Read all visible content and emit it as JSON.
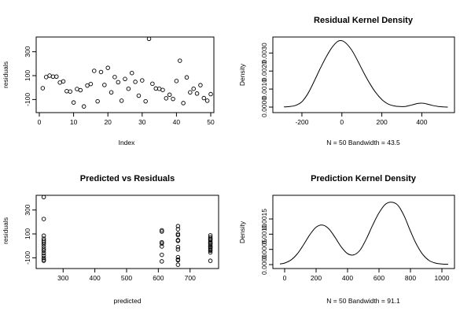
{
  "chart_data": [
    {
      "type": "scatter",
      "title": "",
      "xlabel": "Index",
      "ylabel": "residuals",
      "xlim": [
        0,
        50
      ],
      "ylim": [
        -170,
        410
      ],
      "x_ticks": [
        0,
        10,
        20,
        30,
        40,
        50
      ],
      "y_ticks": [
        -100,
        100,
        300
      ],
      "points": [
        [
          1,
          -5
        ],
        [
          2,
          88
        ],
        [
          3,
          100
        ],
        [
          4,
          92
        ],
        [
          5,
          92
        ],
        [
          6,
          42
        ],
        [
          7,
          52
        ],
        [
          8,
          -30
        ],
        [
          9,
          -33
        ],
        [
          10,
          -125
        ],
        [
          11,
          -12
        ],
        [
          12,
          -22
        ],
        [
          13,
          -158
        ],
        [
          14,
          17
        ],
        [
          15,
          30
        ],
        [
          16,
          140
        ],
        [
          17,
          -115
        ],
        [
          18,
          130
        ],
        [
          19,
          22
        ],
        [
          20,
          165
        ],
        [
          21,
          -40
        ],
        [
          22,
          88
        ],
        [
          23,
          45
        ],
        [
          24,
          -110
        ],
        [
          25,
          72
        ],
        [
          26,
          -10
        ],
        [
          27,
          122
        ],
        [
          28,
          48
        ],
        [
          29,
          -68
        ],
        [
          30,
          60
        ],
        [
          31,
          -115
        ],
        [
          32,
          408
        ],
        [
          33,
          32
        ],
        [
          34,
          -8
        ],
        [
          35,
          -10
        ],
        [
          36,
          -20
        ],
        [
          37,
          -90
        ],
        [
          38,
          -60
        ],
        [
          39,
          -95
        ],
        [
          40,
          55
        ],
        [
          41,
          225
        ],
        [
          42,
          -130
        ],
        [
          43,
          85
        ],
        [
          44,
          -40
        ],
        [
          45,
          -10
        ],
        [
          46,
          -50
        ],
        [
          47,
          20
        ],
        [
          48,
          -88
        ],
        [
          49,
          -110
        ],
        [
          50,
          -55
        ]
      ]
    },
    {
      "type": "line",
      "title": "Residual Kernel Density",
      "xlabel": "N = 50   Bandwidth = 43.5",
      "ylabel": "Density",
      "xlim": [
        -310,
        540
      ],
      "ylim": [
        0,
        0.0038
      ],
      "x_ticks": [
        -200,
        0,
        200,
        400
      ],
      "y_ticks": [
        0.0,
        0.001,
        0.002,
        0.003
      ],
      "y_tick_labels": [
        "0.0000",
        "0.0010",
        "0.0020",
        "0.0030"
      ],
      "x": [
        -290,
        -260,
        -230,
        -200,
        -170,
        -140,
        -110,
        -80,
        -50,
        -20,
        0,
        20,
        50,
        80,
        110,
        140,
        170,
        200,
        230,
        260,
        290,
        320,
        350,
        380,
        400,
        420,
        450,
        480,
        510,
        530
      ],
      "y": [
        1e-05,
        3e-05,
        0.0001,
        0.0003,
        0.00075,
        0.0014,
        0.0021,
        0.00275,
        0.0033,
        0.00365,
        0.00368,
        0.00355,
        0.00315,
        0.00255,
        0.0019,
        0.0013,
        0.0008,
        0.00042,
        0.00018,
        7e-05,
        3e-05,
        4e-05,
        0.00012,
        0.0002,
        0.00022,
        0.00019,
        0.0001,
        4e-05,
        1e-05,
        0.0
      ]
    },
    {
      "type": "scatter",
      "title": "Predicted vs Residuals",
      "xlabel": "predicted",
      "ylabel": "residuals",
      "xlim": [
        225,
        780
      ],
      "ylim": [
        -170,
        410
      ],
      "x_ticks": [
        300,
        400,
        500,
        600,
        700
      ],
      "y_ticks": [
        -100,
        100,
        300
      ],
      "points": [
        [
          239,
          408
        ],
        [
          239,
          225
        ],
        [
          239,
          85
        ],
        [
          239,
          60
        ],
        [
          239,
          45
        ],
        [
          239,
          30
        ],
        [
          239,
          15
        ],
        [
          239,
          -5
        ],
        [
          239,
          -25
        ],
        [
          239,
          -40
        ],
        [
          239,
          -60
        ],
        [
          239,
          -80
        ],
        [
          239,
          -100
        ],
        [
          239,
          -115
        ],
        [
          239,
          -125
        ],
        [
          611,
          130
        ],
        [
          611,
          120
        ],
        [
          611,
          30
        ],
        [
          611,
          20
        ],
        [
          611,
          -5
        ],
        [
          611,
          -75
        ],
        [
          611,
          -130
        ],
        [
          662,
          165
        ],
        [
          662,
          140
        ],
        [
          662,
          100
        ],
        [
          662,
          90
        ],
        [
          662,
          48
        ],
        [
          662,
          42
        ],
        [
          662,
          -10
        ],
        [
          662,
          -30
        ],
        [
          662,
          -95
        ],
        [
          662,
          -115
        ],
        [
          662,
          -120
        ],
        [
          662,
          -158
        ],
        [
          764,
          88
        ],
        [
          764,
          72
        ],
        [
          764,
          60
        ],
        [
          764,
          55
        ],
        [
          764,
          45
        ],
        [
          764,
          32
        ],
        [
          764,
          22
        ],
        [
          764,
          17
        ],
        [
          764,
          5
        ],
        [
          764,
          -5
        ],
        [
          764,
          -10
        ],
        [
          764,
          -20
        ],
        [
          764,
          -33
        ],
        [
          764,
          -40
        ],
        [
          764,
          -55
        ],
        [
          764,
          -125
        ]
      ]
    },
    {
      "type": "line",
      "title": "Prediction Kernel Density",
      "xlabel": "N = 50   Bandwidth = 91.1",
      "ylabel": "Density",
      "xlim": [
        -30,
        1050
      ],
      "ylim": [
        0,
        0.0022
      ],
      "x_ticks": [
        0,
        200,
        400,
        600,
        800,
        1000
      ],
      "y_ticks": [
        0.0,
        0.0005,
        0.001,
        0.0015
      ],
      "y_tick_labels": [
        "0.0000",
        "0.0005",
        "0.0010",
        "0.0015"
      ],
      "x": [
        -30,
        0,
        40,
        80,
        120,
        160,
        200,
        240,
        280,
        320,
        360,
        400,
        440,
        480,
        520,
        560,
        600,
        640,
        680,
        720,
        760,
        800,
        840,
        880,
        920,
        960,
        1000,
        1040
      ],
      "y": [
        2e-05,
        5e-05,
        0.00015,
        0.00035,
        0.00065,
        0.00098,
        0.00123,
        0.0013,
        0.00118,
        0.0009,
        0.00058,
        0.00036,
        0.00032,
        0.00048,
        0.00085,
        0.0013,
        0.0017,
        0.00198,
        0.00205,
        0.00195,
        0.0016,
        0.0011,
        0.00065,
        0.00032,
        0.00013,
        5e-05,
        2e-05,
        1e-05
      ]
    }
  ]
}
